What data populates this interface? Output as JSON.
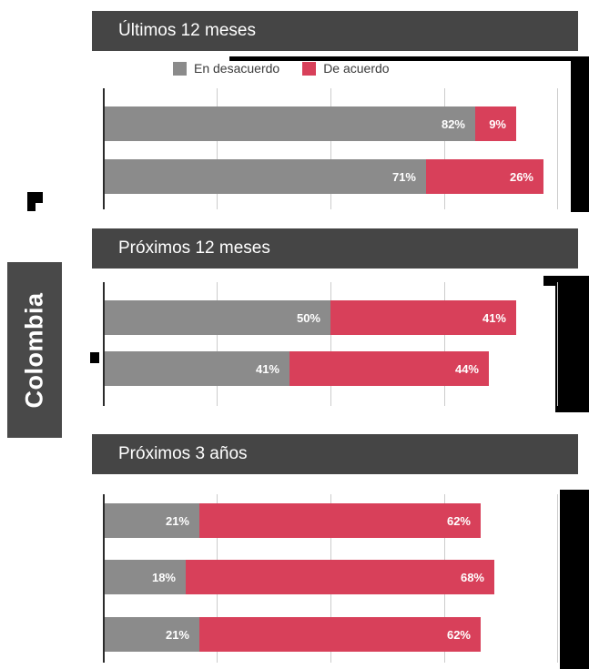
{
  "country_label": "Colombia",
  "legend": {
    "items": [
      {
        "label": "En desacuerdo",
        "color": "#8B8B8B"
      },
      {
        "label": "De acuerdo",
        "color": "#D8405A"
      }
    ]
  },
  "chart_data": {
    "type": "bar",
    "orientation": "horizontal",
    "stacked": true,
    "value_unit": "%",
    "xlim": [
      0,
      100
    ],
    "grid": true,
    "legend_position": "top",
    "country": "Colombia",
    "series_names": [
      "En desacuerdo",
      "De acuerdo"
    ],
    "series_colors": [
      "#8B8B8B",
      "#D8405A"
    ],
    "groups": [
      {
        "title": "Últimos 12 meses",
        "values": [
          [
            82,
            9
          ],
          [
            71,
            26
          ]
        ]
      },
      {
        "title": "Próximos 12 meses",
        "values": [
          [
            50,
            41
          ],
          [
            41,
            44
          ]
        ]
      },
      {
        "title": "Próximos 3 años",
        "values": [
          [
            21,
            62
          ],
          [
            18,
            68
          ],
          [
            21,
            62
          ]
        ]
      }
    ]
  }
}
